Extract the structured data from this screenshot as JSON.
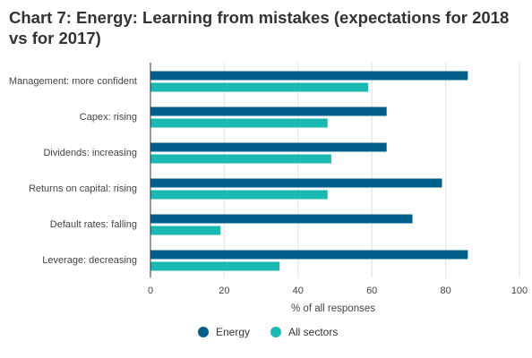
{
  "chart_data": {
    "type": "bar",
    "orientation": "horizontal",
    "title": "Chart 7: Energy: Learning from mistakes (expectations for 2018 vs for 2017)",
    "categories": [
      "Management: more confident",
      "Capex: rising",
      "Dividends: increasing",
      "Returns on capital: rising",
      "Default rates: falling",
      "Leverage: decreasing"
    ],
    "series": [
      {
        "name": "Energy",
        "color": "#005e8a",
        "values": [
          86,
          64,
          64,
          79,
          71,
          86
        ]
      },
      {
        "name": "All sectors",
        "color": "#1ab8b2",
        "values": [
          59,
          48,
          49,
          48,
          19,
          35
        ]
      }
    ],
    "xlabel": "% of all responses",
    "ylabel": "",
    "xlim": [
      0,
      100
    ],
    "xticks": [
      "0",
      "20",
      "40",
      "60",
      "80",
      "100"
    ],
    "grid": true,
    "legend": "bottom-center"
  }
}
